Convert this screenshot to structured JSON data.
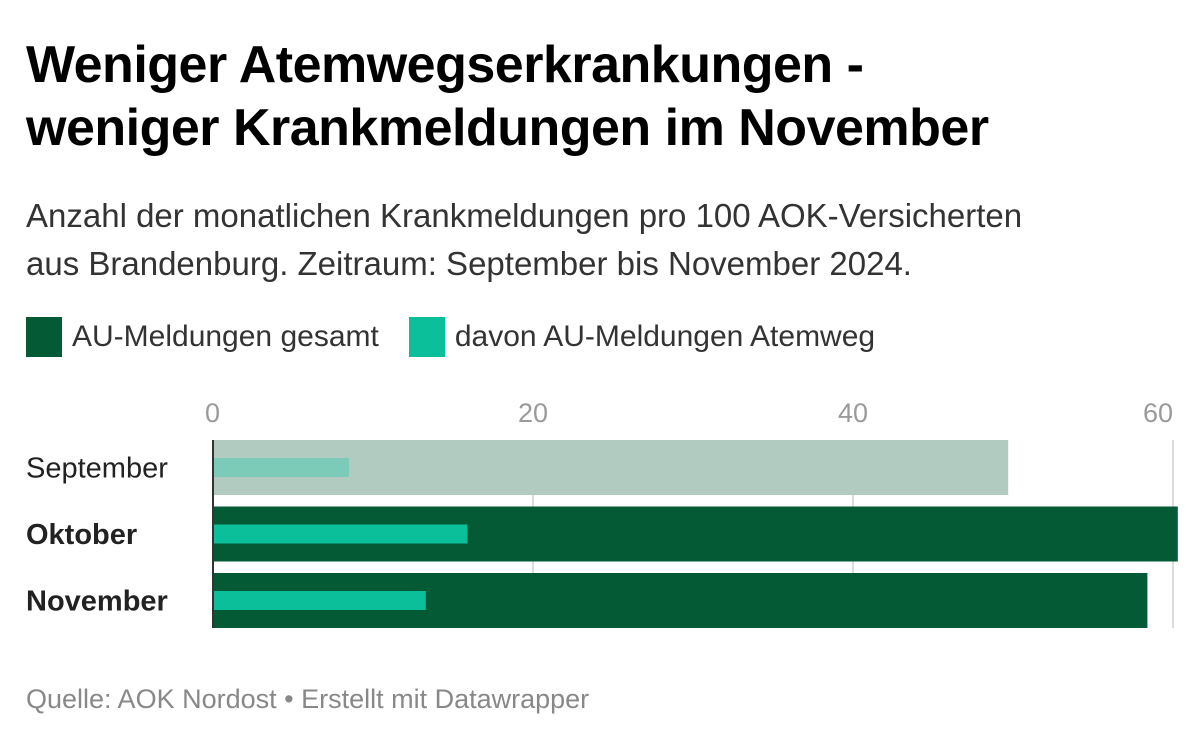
{
  "title_line1": "Weniger Atemwegserkrankungen -",
  "title_line2": "weniger Krankmeldungen im November",
  "subtitle_line1": "Anzahl der monatlichen Krankmeldungen pro 100 AOK-Versicherten",
  "subtitle_line2": "aus Brandenburg. Zeitraum: September bis November 2024.",
  "legend": [
    {
      "label": "AU-Meldungen gesamt",
      "color": "#045a35"
    },
    {
      "label": "davon AU-Meldungen Atemweg",
      "color": "#0bbf9b"
    }
  ],
  "source": "Quelle: AOK Nordost • Erstellt mit Datawrapper",
  "colors": {
    "total": "#045a35",
    "total_faded": "#b1cbc1",
    "respiratory": "#0bbf9b",
    "respiratory_faded": "#7ccbb8",
    "grid": "#cfcfcf",
    "tick": "#9a9a9a"
  },
  "chart_data": {
    "type": "bar",
    "orientation": "horizontal",
    "categories": [
      "September",
      "Oktober",
      "November"
    ],
    "highlighted": [
      false,
      true,
      true
    ],
    "series": [
      {
        "name": "AU-Meldungen gesamt",
        "values": [
          49.7,
          60.3,
          58.4
        ]
      },
      {
        "name": "davon AU-Meldungen Atemweg",
        "values": [
          8.5,
          15.9,
          13.3
        ]
      }
    ],
    "xlim": [
      0,
      60
    ],
    "xticks": [
      0,
      20,
      40,
      60
    ],
    "grid": true,
    "legend_position": "top-left"
  }
}
